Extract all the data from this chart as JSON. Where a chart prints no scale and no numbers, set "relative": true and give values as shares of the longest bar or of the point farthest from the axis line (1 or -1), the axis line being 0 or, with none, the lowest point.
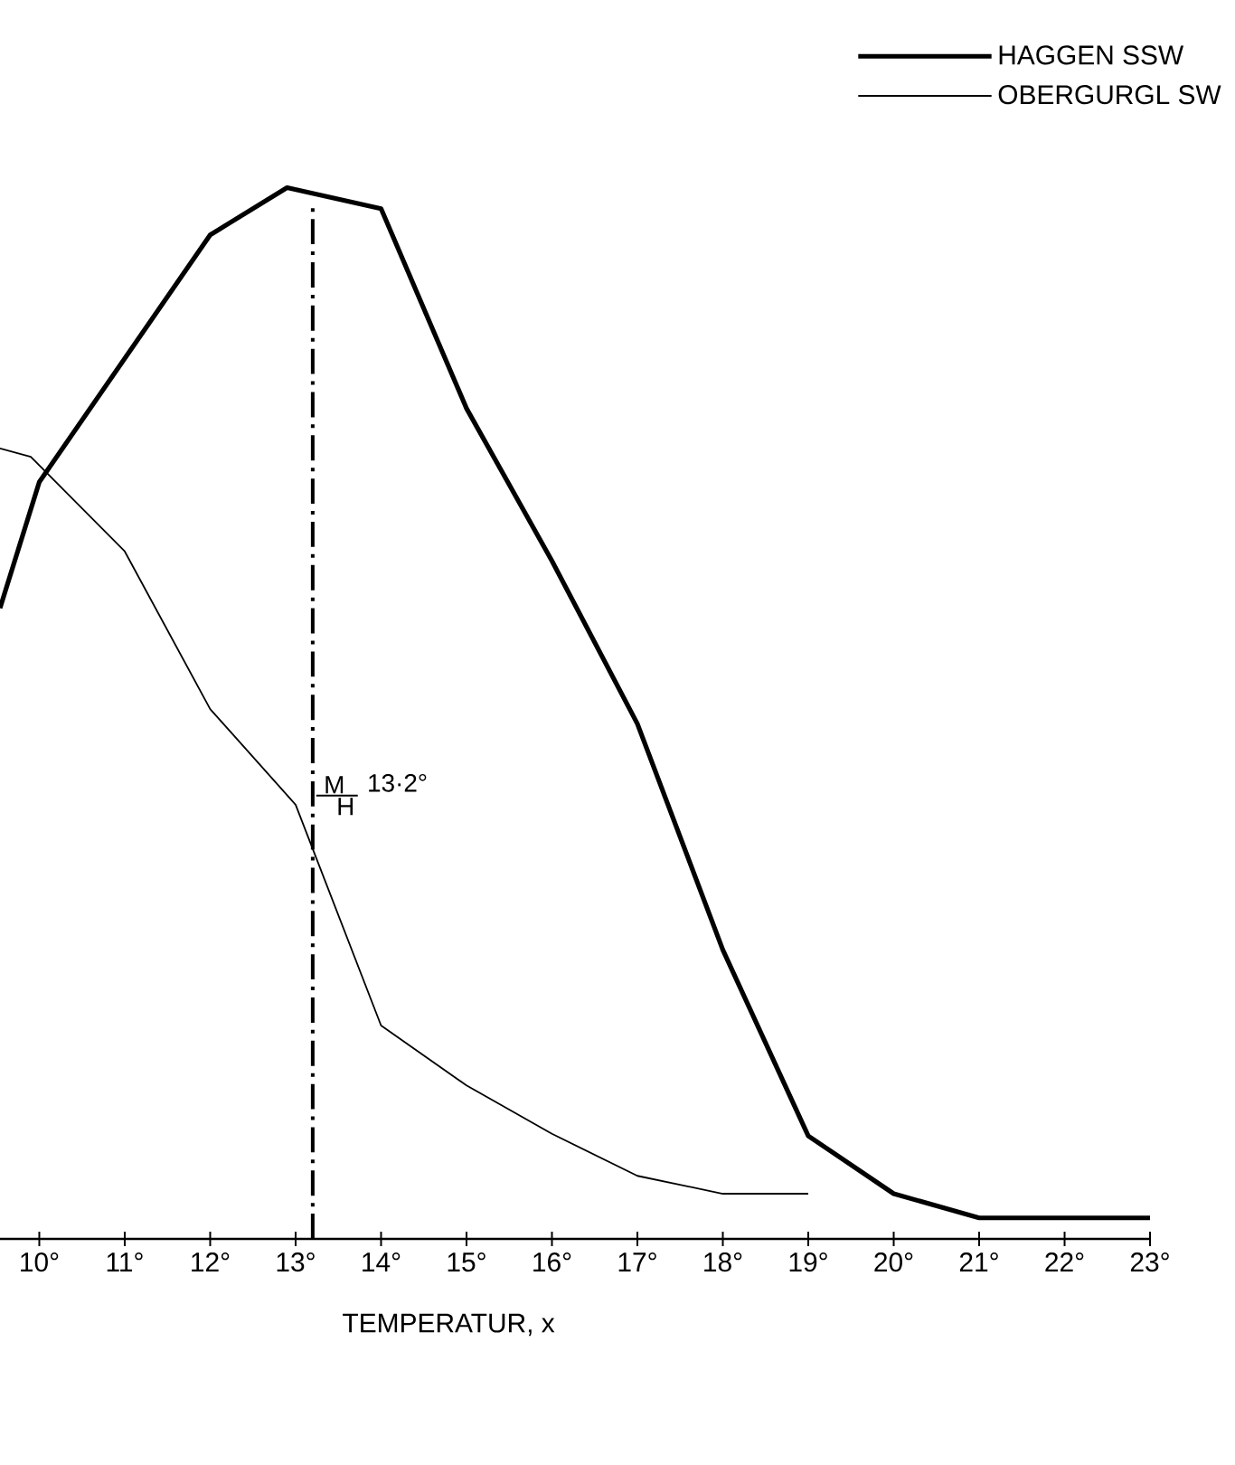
{
  "chart_data": {
    "type": "line",
    "xlabel": "TEMPERATUR, x",
    "relative": true,
    "legend": "top right",
    "marker": "none",
    "line_style": "solid",
    "xlim": [
      9.54,
      23
    ],
    "xticks": [
      {
        "value": 10,
        "label": "10°"
      },
      {
        "value": 11,
        "label": "11°"
      },
      {
        "value": 12,
        "label": "12°"
      },
      {
        "value": 13,
        "label": "13°"
      },
      {
        "value": 14,
        "label": "14°"
      },
      {
        "value": 15,
        "label": "15°"
      },
      {
        "value": 16,
        "label": "16°"
      },
      {
        "value": 17,
        "label": "17°"
      },
      {
        "value": 18,
        "label": "18°"
      },
      {
        "value": 19,
        "label": "19°"
      },
      {
        "value": 20,
        "label": "20°"
      },
      {
        "value": 21,
        "label": "21°"
      },
      {
        "value": 22,
        "label": "22°"
      },
      {
        "value": 23,
        "label": "23°"
      }
    ],
    "series": [
      {
        "name": "HAGGEN SSW",
        "color": "#000000",
        "x": [
          9.54,
          10,
          12,
          12.9,
          14,
          15,
          16,
          17,
          18,
          19,
          20,
          21,
          23
        ],
        "values": [
          0.6,
          0.72,
          0.955,
          1.0,
          0.98,
          0.79,
          0.645,
          0.49,
          0.275,
          0.098,
          0.043,
          0.02,
          0.02
        ]
      },
      {
        "name": "OBERGURGL SW",
        "color": "#000000",
        "x": [
          9.54,
          9.9,
          11,
          12,
          13,
          14,
          15,
          16,
          17,
          18,
          19
        ],
        "values": [
          0.752,
          0.744,
          0.654,
          0.504,
          0.413,
          0.203,
          0.146,
          0.1,
          0.06,
          0.043,
          0.043
        ]
      }
    ],
    "ref_lines": [
      {
        "axis": "x",
        "value": 13.2,
        "label": "13·2°",
        "line_style": "dashdot"
      }
    ],
    "annotations": [
      "M",
      "H"
    ]
  }
}
